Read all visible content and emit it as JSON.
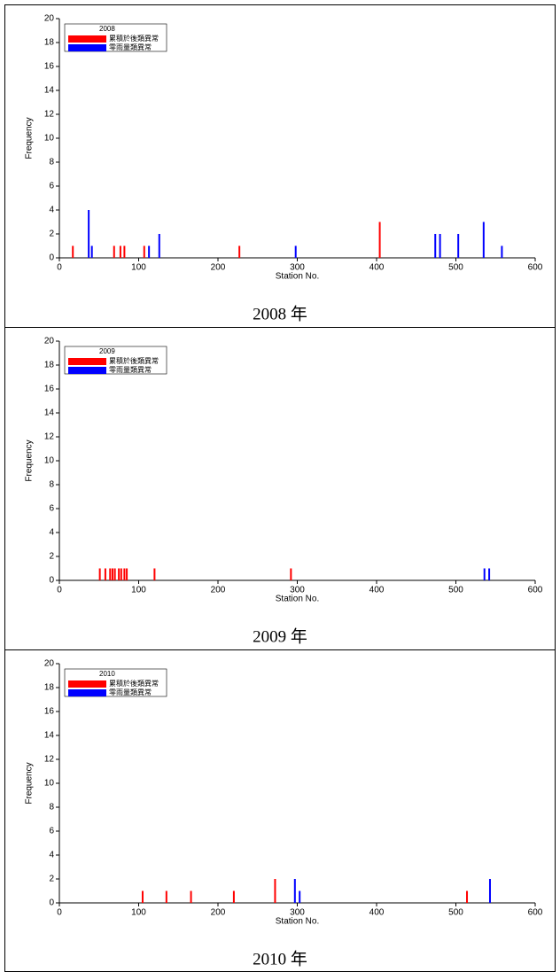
{
  "chart_data": [
    {
      "type": "bar",
      "legend_title": "2008",
      "caption": "2008 年",
      "xlabel": "Station No.",
      "ylabel": "Frequency",
      "xlim": [
        0,
        600
      ],
      "xticks": [
        0,
        100,
        200,
        300,
        400,
        500,
        600
      ],
      "ylim": [
        0,
        20
      ],
      "yticks": [
        0,
        2,
        4,
        6,
        8,
        10,
        12,
        14,
        16,
        18,
        20
      ],
      "series": [
        {
          "name": "累積於後類異常",
          "color": "#ff0000",
          "x": [
            17,
            69,
            77,
            82,
            107,
            227,
            404
          ],
          "values": [
            1,
            1,
            1,
            1,
            1,
            1,
            3
          ]
        },
        {
          "name": "零雨量類異常",
          "color": "#0000ff",
          "x": [
            37,
            41,
            113,
            126,
            298,
            474,
            480,
            503,
            535,
            558
          ],
          "values": [
            4,
            1,
            1,
            2,
            1,
            2,
            2,
            2,
            3,
            1
          ]
        }
      ]
    },
    {
      "type": "bar",
      "legend_title": "2009",
      "caption": "2009 年",
      "xlabel": "Station No.",
      "ylabel": "Frequency",
      "xlim": [
        0,
        600
      ],
      "xticks": [
        0,
        100,
        200,
        300,
        400,
        500,
        600
      ],
      "ylim": [
        0,
        20
      ],
      "yticks": [
        0,
        2,
        4,
        6,
        8,
        10,
        12,
        14,
        16,
        18,
        20
      ],
      "series": [
        {
          "name": "累積於後類異常",
          "color": "#ff0000",
          "x": [
            51,
            58,
            64,
            67,
            70,
            75,
            78,
            82,
            85,
            120,
            292
          ],
          "values": [
            1,
            1,
            1,
            1,
            1,
            1,
            1,
            1,
            1,
            1,
            1
          ]
        },
        {
          "name": "零雨量類異常",
          "color": "#0000ff",
          "x": [
            536,
            542
          ],
          "values": [
            1,
            1
          ]
        }
      ]
    },
    {
      "type": "bar",
      "legend_title": "2010",
      "caption": "2010 年",
      "xlabel": "Station No.",
      "ylabel": "Frequency",
      "xlim": [
        0,
        600
      ],
      "xticks": [
        0,
        100,
        200,
        300,
        400,
        500,
        600
      ],
      "ylim": [
        0,
        20
      ],
      "yticks": [
        0,
        2,
        4,
        6,
        8,
        10,
        12,
        14,
        16,
        18,
        20
      ],
      "series": [
        {
          "name": "累積於後類異常",
          "color": "#ff0000",
          "x": [
            105,
            135,
            166,
            220,
            272,
            514
          ],
          "values": [
            1,
            1,
            1,
            1,
            2,
            1
          ]
        },
        {
          "name": "零雨量類異常",
          "color": "#0000ff",
          "x": [
            297,
            303,
            543
          ],
          "values": [
            2,
            1,
            2
          ]
        }
      ]
    }
  ]
}
